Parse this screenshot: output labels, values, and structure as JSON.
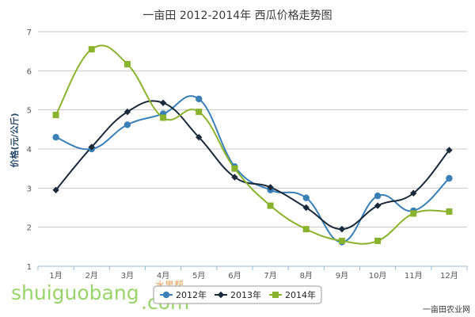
{
  "chart_data": {
    "type": "line",
    "title": "一亩田 2012-2014年 西瓜价格走势图",
    "ylabel": "价格(元/公斤)",
    "xlabel": "",
    "categories": [
      "1月",
      "2月",
      "3月",
      "4月",
      "5月",
      "6月",
      "7月",
      "8月",
      "9月",
      "10月",
      "11月",
      "12月"
    ],
    "ylim": [
      1,
      7
    ],
    "yticks": [
      1,
      2,
      3,
      4,
      5,
      6,
      7
    ],
    "grid": true,
    "legend_position": "bottom",
    "series": [
      {
        "name": "2012年",
        "color": "#3a7fb5",
        "marker": "circle",
        "values": [
          4.3,
          4.0,
          4.62,
          4.9,
          5.28,
          3.55,
          2.95,
          2.75,
          1.62,
          2.8,
          2.42,
          3.25
        ]
      },
      {
        "name": "2013年",
        "color": "#1a2a3a",
        "marker": "diamond",
        "values": [
          2.95,
          4.05,
          4.95,
          5.18,
          4.3,
          3.28,
          3.02,
          2.5,
          1.95,
          2.55,
          2.87,
          3.97
        ]
      },
      {
        "name": "2014年",
        "color": "#8ab32d",
        "marker": "square",
        "values": [
          4.87,
          6.55,
          6.17,
          4.8,
          4.95,
          3.5,
          2.55,
          1.95,
          1.65,
          1.65,
          2.35,
          2.4
        ]
      }
    ]
  },
  "watermark": {
    "text": "shuiguobang",
    "suffix": ".com",
    "small": "水果帮",
    "credit": "一亩田农业网"
  }
}
